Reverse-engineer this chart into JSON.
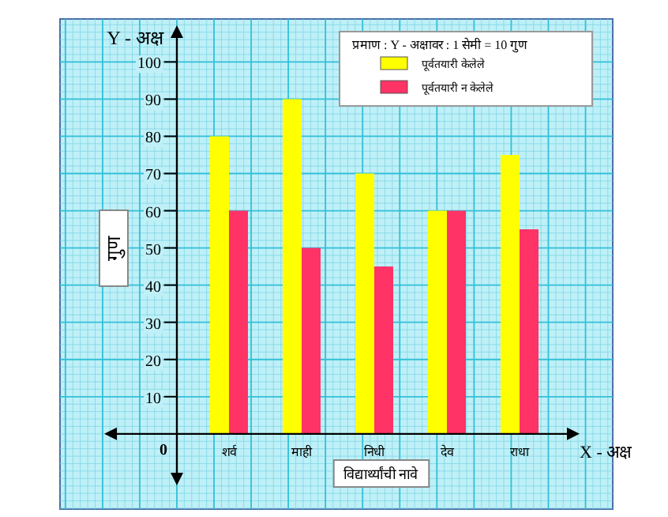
{
  "chart_data": {
    "type": "bar",
    "categories": [
      "शर्व",
      "माही",
      "निधी",
      "देव",
      "राधा"
    ],
    "series": [
      {
        "name": "पूर्वतयारी केलेले",
        "color": "#ffff00",
        "values": [
          80,
          90,
          70,
          60,
          75
        ]
      },
      {
        "name": "पूर्वतयारी न केलेले",
        "color": "#ff3366",
        "values": [
          60,
          50,
          45,
          60,
          55
        ]
      }
    ],
    "legend_title": "प्रमाण : Y - अक्षावर : 1 सेमी = 10 गुण",
    "xlabel": "विद्यार्थ्यांची नावे",
    "ylabel": "गुण",
    "annotations": [
      "Y - अक्ष",
      "X - अक्ष",
      "0"
    ],
    "ylim": [
      -13,
      109
    ],
    "yticks": [
      10,
      20,
      30,
      40,
      50,
      60,
      70,
      80,
      90,
      100
    ],
    "grid": true,
    "legend": "top right"
  }
}
